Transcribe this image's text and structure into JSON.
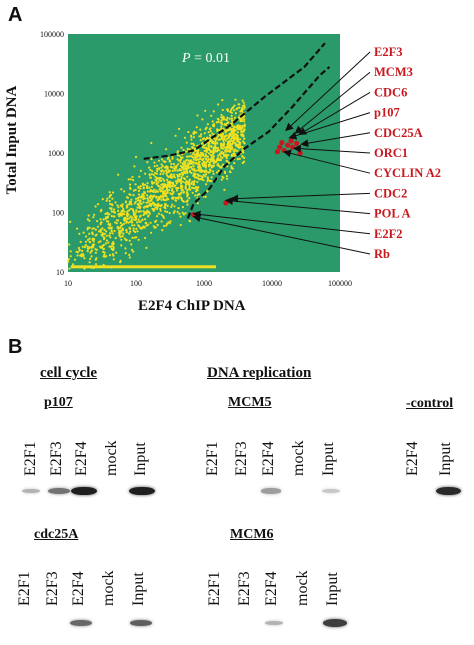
{
  "panel_a": {
    "letter": "A",
    "chart_data": {
      "type": "scatter",
      "xlabel": "E2F4 ChIP DNA",
      "ylabel": "Total Input DNA",
      "xscale": "log",
      "yscale": "log",
      "xlim": [
        10,
        100000
      ],
      "ylim": [
        10,
        100000
      ],
      "x_ticks": [
        "10",
        "100",
        "1000",
        "10000",
        "100000"
      ],
      "y_ticks": [
        "10",
        "100",
        "1000",
        "10000",
        "100000"
      ],
      "threshold_label_var": "P",
      "threshold_label_rest": " = 0.01",
      "background_color": "#2a9a6a",
      "point_color": "#f0e020",
      "highlight_color": "#c8181e",
      "genes": [
        "E2F3",
        "MCM3",
        "CDC6",
        "p107",
        "CDC25A",
        "ORC1",
        "CYCLIN A2",
        "CDC2",
        "POL A",
        "E2F2",
        "Rb"
      ]
    }
  },
  "panel_b": {
    "letter": "B",
    "cell_cycle_title": "cell cycle",
    "dna_replication_title": "DNA replication",
    "gels": [
      {
        "title": "p107",
        "lanes": [
          "E2F1",
          "E2F3",
          "E2F4",
          "mock",
          "Input"
        ]
      },
      {
        "title": "MCM5",
        "lanes": [
          "E2F1",
          "E2F3",
          "E2F4",
          "mock",
          "Input"
        ]
      },
      {
        "title": "-control",
        "lanes": [
          "E2F4",
          "Input"
        ]
      },
      {
        "title": "cdc25A",
        "lanes": [
          "E2F1",
          "E2F3",
          "E2F4",
          "mock",
          "Input"
        ]
      },
      {
        "title": "MCM6",
        "lanes": [
          "E2F1",
          "E2F3",
          "E2F4",
          "mock",
          "Input"
        ]
      }
    ],
    "band_intensity": [
      [
        0.25,
        0.55,
        0.95,
        0.0,
        0.95
      ],
      [
        0.0,
        0.0,
        0.35,
        0.0,
        0.15
      ],
      [
        0.0,
        0.9
      ],
      [
        0.0,
        0.0,
        0.6,
        0.0,
        0.65
      ],
      [
        0.0,
        0.0,
        0.25,
        0.0,
        0.8
      ]
    ]
  }
}
